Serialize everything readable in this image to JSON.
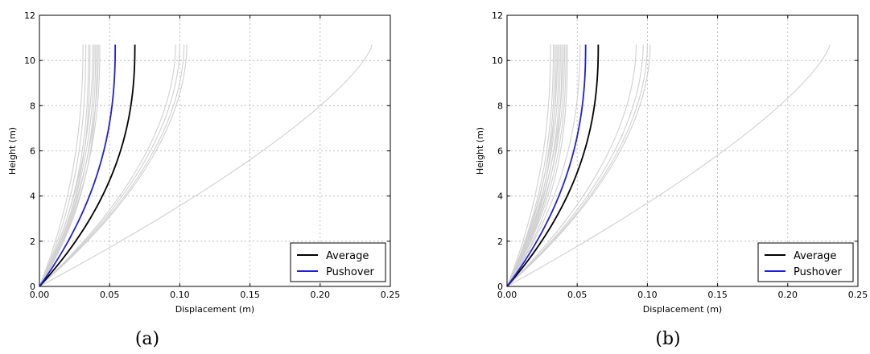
{
  "chart_data": [
    {
      "id": "a",
      "type": "line",
      "caption": "(a)",
      "xlabel": "Displacement (m)",
      "ylabel": "Height (m)",
      "xlim": [
        0,
        0.25
      ],
      "ylim": [
        0,
        12
      ],
      "xticks": [
        "0.00",
        "0.05",
        "0.10",
        "0.15",
        "0.20",
        "0.25"
      ],
      "yticks": [
        "0",
        "2",
        "4",
        "6",
        "8",
        "10",
        "12"
      ],
      "grid": true,
      "legend": "lower-right",
      "height_top": 10.7,
      "records_tip_displacements": [
        0.031,
        0.033,
        0.035,
        0.036,
        0.038,
        0.039,
        0.04,
        0.041,
        0.042,
        0.043,
        0.097,
        0.1,
        0.103,
        0.105,
        0.237
      ],
      "series": [
        {
          "name": "Average",
          "color": "#000000",
          "tip_displacement": 0.068
        },
        {
          "name": "Pushover",
          "color": "#1f1fd6",
          "tip_displacement": 0.054
        }
      ]
    },
    {
      "id": "b",
      "type": "line",
      "caption": "(b)",
      "xlabel": "Displacement (m)",
      "ylabel": "Height (m)",
      "xlim": [
        0,
        0.25
      ],
      "ylim": [
        0,
        12
      ],
      "xticks": [
        "0.00",
        "0.05",
        "0.10",
        "0.15",
        "0.20",
        "0.25"
      ],
      "yticks": [
        "0",
        "2",
        "4",
        "6",
        "8",
        "10",
        "12"
      ],
      "grid": true,
      "legend": "lower-right",
      "height_top": 10.7,
      "records_tip_displacements": [
        0.031,
        0.033,
        0.034,
        0.035,
        0.036,
        0.037,
        0.038,
        0.039,
        0.04,
        0.041,
        0.042,
        0.043,
        0.052,
        0.092,
        0.097,
        0.1,
        0.102,
        0.23
      ],
      "series": [
        {
          "name": "Average",
          "color": "#000000",
          "tip_displacement": 0.065
        },
        {
          "name": "Pushover",
          "color": "#1f1fd6",
          "tip_displacement": 0.056
        }
      ]
    }
  ],
  "style": {
    "record_color": "#d0d0d0",
    "grid_color": "#b0b0b0"
  }
}
